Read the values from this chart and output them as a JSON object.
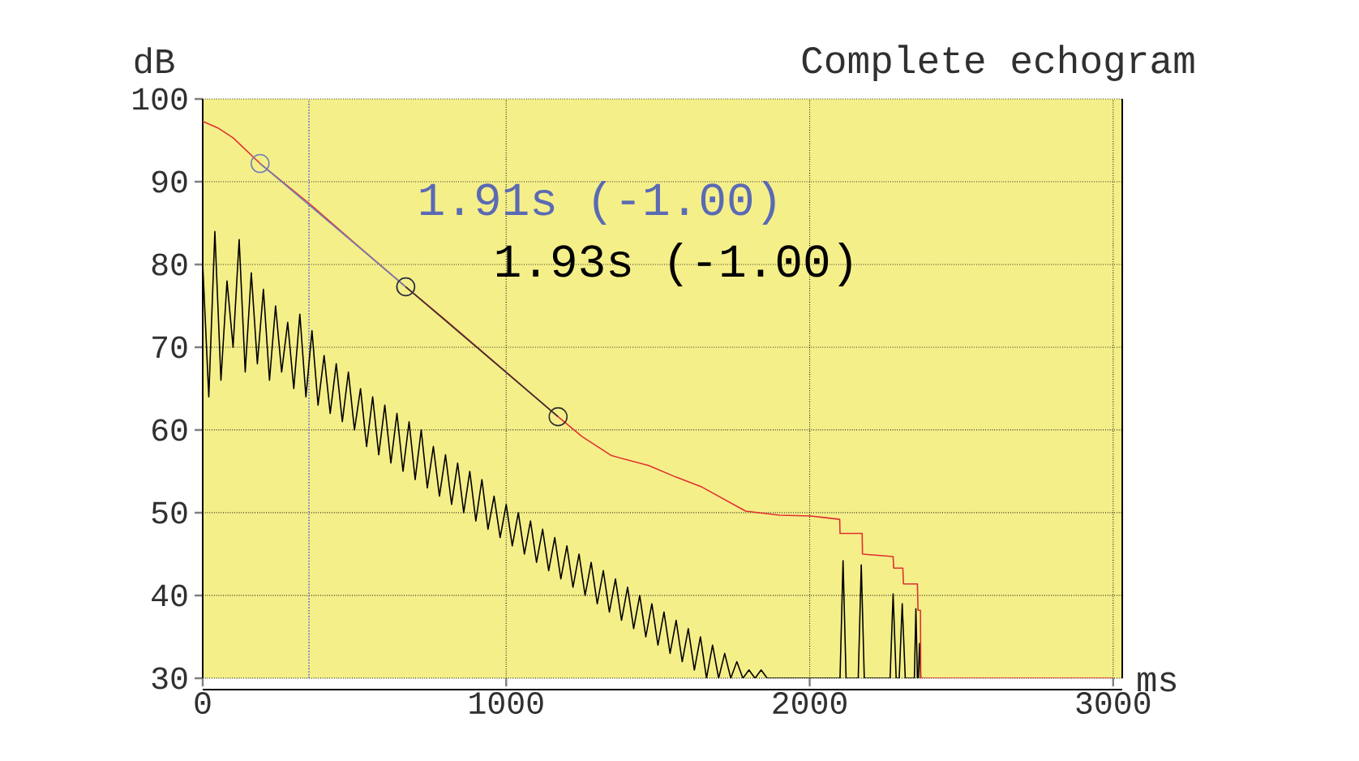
{
  "chart_data": {
    "type": "line",
    "title": "Complete echogram",
    "xlabel": "ms",
    "ylabel": "dB",
    "xlim": [
      0,
      3030
    ],
    "ylim": [
      30,
      100
    ],
    "xticks": [
      0,
      1000,
      2000,
      3000
    ],
    "yticks": [
      30,
      40,
      50,
      60,
      70,
      80,
      90,
      100
    ],
    "grid": true,
    "ref_lines": [
      {
        "axis": "x",
        "value": 350,
        "color": "#5a6ad0",
        "line_style": "dotted"
      }
    ],
    "annotations": [
      "1.91s (-1.00)",
      "1.93s (-1.00)"
    ],
    "series": [
      {
        "color": "#000000",
        "marker": "none",
        "x": [
          0,
          20,
          40,
          60,
          80,
          100,
          120,
          140,
          160,
          180,
          200,
          220,
          240,
          260,
          280,
          300,
          320,
          340,
          360,
          380,
          400,
          420,
          440,
          460,
          480,
          500,
          520,
          540,
          560,
          580,
          600,
          620,
          640,
          660,
          680,
          700,
          720,
          740,
          760,
          780,
          800,
          820,
          840,
          860,
          880,
          900,
          920,
          940,
          960,
          980,
          1000,
          1020,
          1040,
          1060,
          1080,
          1100,
          1120,
          1140,
          1160,
          1180,
          1200,
          1220,
          1240,
          1260,
          1280,
          1300,
          1320,
          1340,
          1360,
          1380,
          1400,
          1420,
          1440,
          1460,
          1480,
          1500,
          1520,
          1540,
          1560,
          1580,
          1600,
          1620,
          1640,
          1660,
          1680,
          1700,
          1720,
          1740,
          1760,
          1780,
          1800,
          1820,
          1840,
          1860,
          2100,
          2110,
          2120,
          2160,
          2170,
          2180,
          2265,
          2275,
          2285,
          2295,
          2305,
          2315,
          2345,
          2350,
          2355,
          2358,
          2362,
          2366
        ],
        "values": [
          80,
          64,
          84,
          66,
          78,
          70,
          83,
          67,
          79,
          68,
          77,
          66,
          75,
          67,
          73,
          65,
          74,
          64,
          72,
          63,
          69,
          62,
          68,
          61,
          67,
          60,
          65,
          58,
          64,
          57,
          63,
          56,
          62,
          55,
          61,
          54,
          60,
          53,
          58,
          52,
          57,
          51,
          56,
          50,
          55,
          49,
          54,
          48,
          52,
          47,
          51,
          46,
          50,
          45,
          49,
          44,
          48,
          43,
          47,
          42,
          46,
          41,
          45,
          40,
          44,
          39,
          43,
          38,
          42,
          37,
          41,
          36,
          40,
          35,
          39,
          34,
          38,
          33,
          37,
          32,
          36,
          31,
          35,
          30,
          34,
          30,
          33,
          30,
          32,
          30,
          31,
          30,
          31,
          30,
          30,
          44.2,
          30,
          30,
          43.7,
          30,
          30,
          40.2,
          30,
          30,
          39.0,
          30,
          30,
          38.4,
          30,
          30,
          34.2,
          30
        ]
      },
      {
        "color": "#e03030",
        "marker": "none",
        "x": [
          0,
          50,
          100,
          189,
          350,
          500,
          669,
          800,
          1000,
          1171,
          1250,
          1347,
          1469,
          1560,
          1645,
          1789,
          1900,
          2003,
          2099,
          2100,
          2173,
          2174,
          2275,
          2277,
          2307,
          2309,
          2355,
          2357,
          2365,
          2366,
          3000
        ],
        "values": [
          97.3,
          96.5,
          95.3,
          92.2,
          87.4,
          82.6,
          77.3,
          73.3,
          67.0,
          61.6,
          59.2,
          56.9,
          55.7,
          54.3,
          53.1,
          50.2,
          49.7,
          49.6,
          49.2,
          47.5,
          47.5,
          45.0,
          44.7,
          43.3,
          43.3,
          41.4,
          41.4,
          38.2,
          38.2,
          30,
          30
        ]
      },
      {
        "color": "#7080b8",
        "marker": "circle",
        "x": [
          189,
          669
        ],
        "values": [
          92.2,
          77.3
        ]
      },
      {
        "color": "#303030",
        "marker": "circle",
        "x": [
          669,
          1171
        ],
        "values": [
          77.3,
          61.6
        ]
      }
    ]
  }
}
